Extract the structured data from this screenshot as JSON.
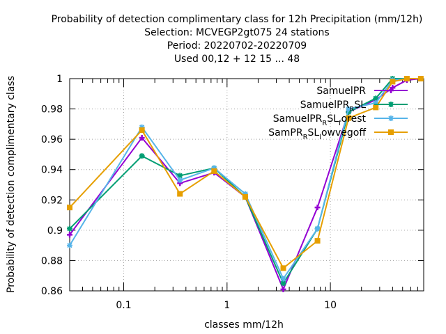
{
  "chart_data": {
    "type": "line",
    "title_lines": [
      "Probability of detection complimentary class  for 12h Precipitation (mm/12h)",
      "Selection: MCVEGP2gt075      24 stations",
      "Period: 20220702-20220709",
      "Used  00,12  + 12 15 ... 48"
    ],
    "xlabel": "classes mm/12h",
    "ylabel": "Probability of detection complimentary class",
    "xscale": "log",
    "xlim": [
      0.03,
      80
    ],
    "ylim": [
      0.86,
      1.0
    ],
    "x_ticks": [
      0.1,
      1,
      10
    ],
    "x_tick_labels": [
      "0.1",
      "1",
      "10"
    ],
    "y_ticks": [
      0.86,
      0.88,
      0.9,
      0.92,
      0.94,
      0.96,
      0.98,
      1.0
    ],
    "y_tick_labels": [
      "0.86",
      "0.88",
      "0.9",
      "0.92",
      "0.94",
      "0.96",
      "0.98",
      "1"
    ],
    "grid": true,
    "legend_position": "top-right",
    "x": [
      0.03,
      0.15,
      0.35,
      0.75,
      1.5,
      3.5,
      7.5,
      15,
      27.5,
      40,
      55,
      75
    ],
    "series": [
      {
        "name": "SamuelPR",
        "legend": {
          "main": "SamuelPR",
          "parts": [
            {
              "t": "SamuelPR",
              "s": ""
            }
          ]
        },
        "color": "#9400d3",
        "marker": "plus",
        "values": [
          0.897,
          0.961,
          0.931,
          0.938,
          0.922,
          0.861,
          0.915,
          0.978,
          0.986,
          0.994,
          0.999,
          1.0
        ]
      },
      {
        "name": "SamuelPR_RSL",
        "legend": {
          "parts": [
            {
              "t": "SamuelPR",
              "s": ""
            },
            {
              "t": "R",
              "s": "sub"
            },
            {
              "t": "SL",
              "s": ""
            }
          ]
        },
        "color": "#009e73",
        "marker": "cross",
        "values": [
          0.901,
          0.949,
          0.936,
          0.941,
          0.922,
          0.865,
          0.901,
          0.978,
          0.987,
          1.0,
          1.0,
          1.0
        ]
      },
      {
        "name": "SamuelPR_RSL_forest",
        "legend": {
          "parts": [
            {
              "t": "SamuelPR",
              "s": ""
            },
            {
              "t": "R",
              "s": "sub"
            },
            {
              "t": "SL",
              "s": ""
            },
            {
              "t": "f",
              "s": "sub"
            },
            {
              "t": "orest",
              "s": ""
            }
          ]
        },
        "color": "#56b4e9",
        "marker": "star",
        "values": [
          0.89,
          0.968,
          0.933,
          0.941,
          0.924,
          0.868,
          0.901,
          0.98,
          0.984,
          0.999,
          1.0,
          1.0
        ]
      },
      {
        "name": "SamPR_RSL_lowvegoff",
        "legend": {
          "parts": [
            {
              "t": "SamPR",
              "s": ""
            },
            {
              "t": "R",
              "s": "sub"
            },
            {
              "t": "SL",
              "s": ""
            },
            {
              "t": "l",
              "s": "sub"
            },
            {
              "t": "owvegoff",
              "s": ""
            }
          ]
        },
        "color": "#e69f00",
        "marker": "box",
        "values": [
          0.915,
          0.966,
          0.924,
          0.939,
          0.922,
          0.875,
          0.893,
          0.974,
          0.981,
          0.998,
          1.0,
          1.0
        ]
      }
    ]
  }
}
